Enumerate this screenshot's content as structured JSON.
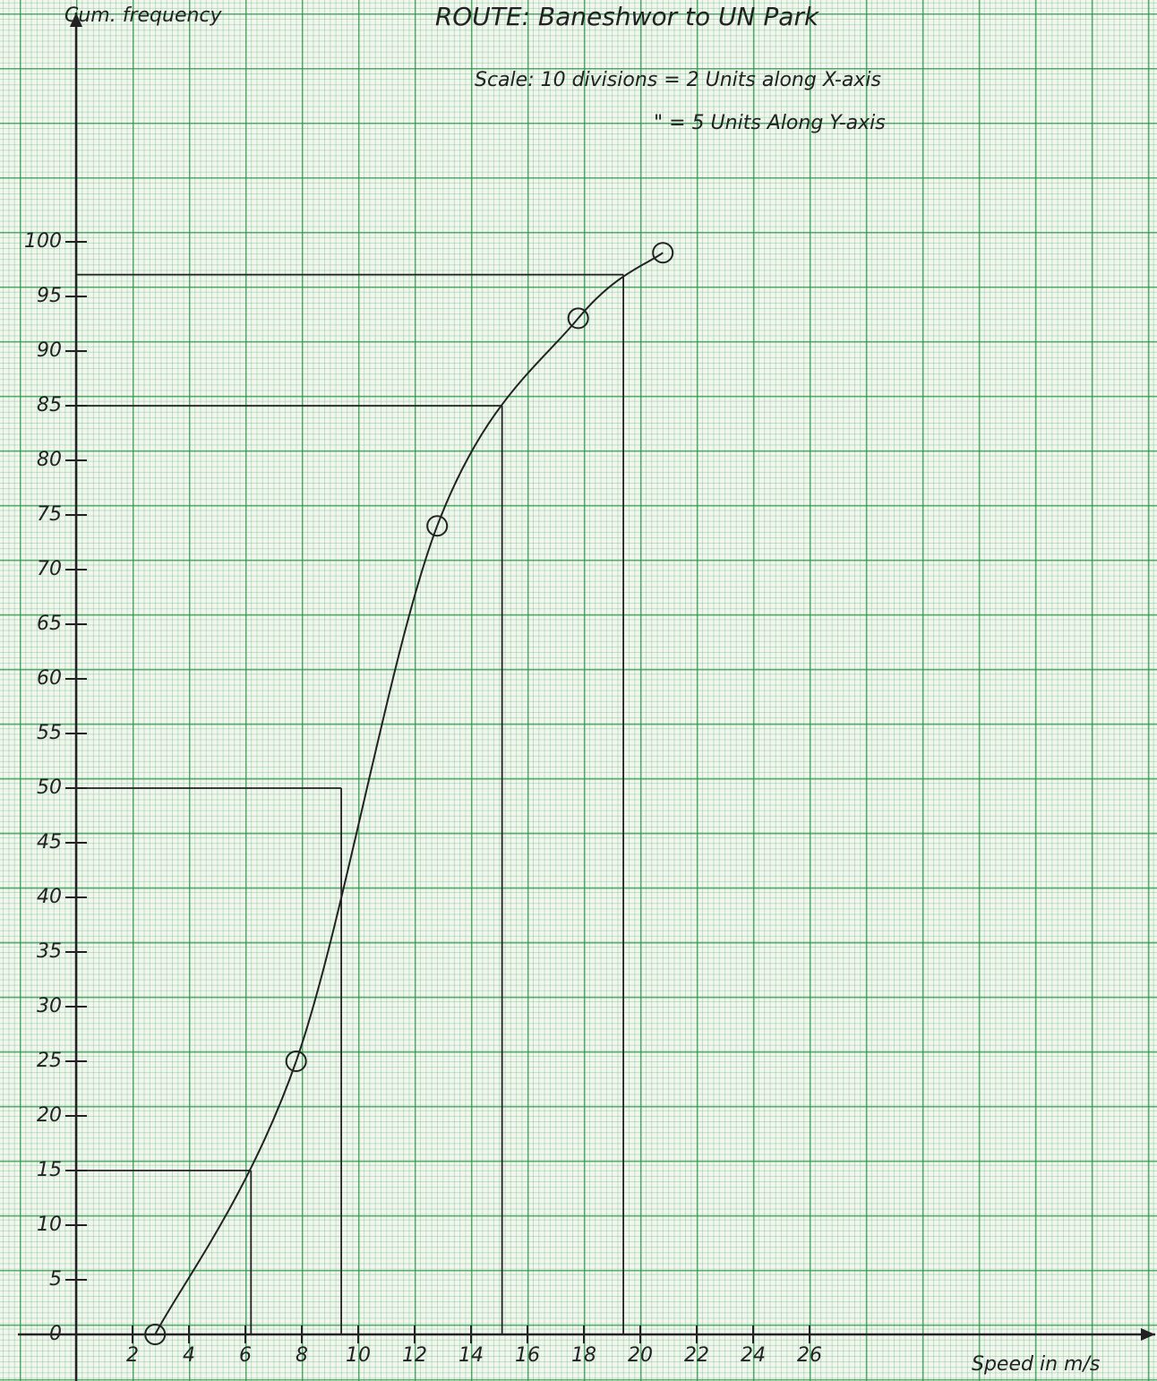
{
  "chart_data": {
    "type": "line",
    "title": "ROUTE: Baneshwor to UN Park",
    "annotations": [
      "Scale: 10 divisions = 2 Units along X-axis",
      "\" = 5 Units Along Y-axis"
    ],
    "x_label": "Speed in m/s",
    "y_label": "Cum. frequency",
    "x": [
      2.8,
      7.8,
      12.8,
      17.8,
      20.8
    ],
    "series": [
      {
        "color": "#222222",
        "values": [
          0,
          25,
          74,
          93,
          99
        ]
      }
    ],
    "reading_lines": [
      {
        "x": 6.2,
        "y": 15
      },
      {
        "x": 9.4,
        "y": 50
      },
      {
        "x": 15.1,
        "y": 85
      },
      {
        "x": 19.4,
        "y": 97
      }
    ],
    "xlim": [
      0,
      38
    ],
    "ylim": [
      0,
      120
    ],
    "xticks": [
      2,
      4,
      6,
      8,
      10,
      12,
      14,
      16,
      18,
      20,
      22,
      24,
      26
    ],
    "yticks": [
      0,
      5,
      10,
      15,
      20,
      25,
      30,
      35,
      40,
      45,
      50,
      55,
      60,
      65,
      70,
      75,
      80,
      85,
      90,
      95,
      100
    ]
  }
}
